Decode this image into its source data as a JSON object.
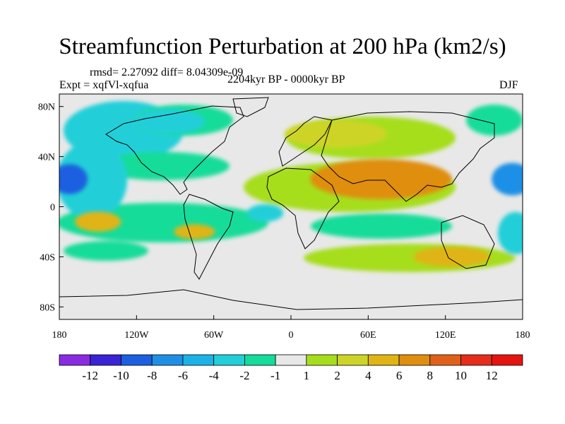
{
  "title": "Streamfunction Perturbation at 200 hPa (km2/s)",
  "stats_line": "rmsd= 2.27092 diff= 8.04309e-09",
  "experiment": "Expt = xqfVl-xqfua",
  "period": "2204kyr BP - 0000kyr BP",
  "season": "DJF",
  "map": {
    "lon_range": [
      -180,
      180
    ],
    "lat_range": [
      -90,
      90
    ],
    "y_ticks": [
      {
        "lat": 80,
        "label": "80N"
      },
      {
        "lat": 40,
        "label": "40N"
      },
      {
        "lat": 0,
        "label": "0"
      },
      {
        "lat": -40,
        "label": "40S"
      },
      {
        "lat": -80,
        "label": "80S"
      }
    ],
    "x_ticks": [
      {
        "lon": -180,
        "label": "180"
      },
      {
        "lon": -120,
        "label": "120W"
      },
      {
        "lon": -60,
        "label": "60W"
      },
      {
        "lon": 0,
        "label": "0"
      },
      {
        "lon": 60,
        "label": "60E"
      },
      {
        "lon": 120,
        "label": "120E"
      },
      {
        "lon": 180,
        "label": "180"
      }
    ]
  },
  "colorbar": {
    "levels": [
      "-12",
      "-10",
      "-8",
      "-6",
      "-4",
      "-2",
      "-1",
      "1",
      "2",
      "4",
      "6",
      "8",
      "10",
      "12"
    ],
    "colors": [
      "#8a2be2",
      "#3a22d6",
      "#1c5fe0",
      "#1f8fe6",
      "#1cb2e8",
      "#22cfd8",
      "#14dc9a",
      "#e8e8e8",
      "#a6de1c",
      "#cdd428",
      "#e0b414",
      "#e08e10",
      "#e0601a",
      "#e62c1a",
      "#e61410"
    ]
  },
  "field_regions": [
    {
      "name": "north-pacific-east-low",
      "lon": -172,
      "lat": 22,
      "rx": 14,
      "ry": 12,
      "level": -10
    },
    {
      "name": "north-pacific-west-low",
      "lon": 172,
      "lat": 22,
      "rx": 16,
      "ry": 13,
      "level": -8
    },
    {
      "name": "south-asia-high",
      "lon": 70,
      "lat": 22,
      "rx": 55,
      "ry": 16,
      "level": 6
    },
    {
      "name": "eurasia-north-ridge",
      "lon": 35,
      "lat": 58,
      "rx": 40,
      "ry": 11,
      "level": 2
    },
    {
      "name": "south-pacific-high",
      "lon": -150,
      "lat": -12,
      "rx": 18,
      "ry": 8,
      "level": 4
    },
    {
      "name": "tropical-atlantic-low",
      "lon": -20,
      "lat": -5,
      "rx": 14,
      "ry": 7,
      "level": -4
    },
    {
      "name": "australia-high",
      "lon": 125,
      "lat": -40,
      "rx": 30,
      "ry": 8,
      "level": 4
    },
    {
      "name": "south-america-high",
      "lon": -75,
      "lat": -20,
      "rx": 16,
      "ry": 6,
      "level": 4
    },
    {
      "name": "arctic-canada-low",
      "lon": -95,
      "lat": 68,
      "rx": 28,
      "ry": 10,
      "level": -4
    }
  ]
}
